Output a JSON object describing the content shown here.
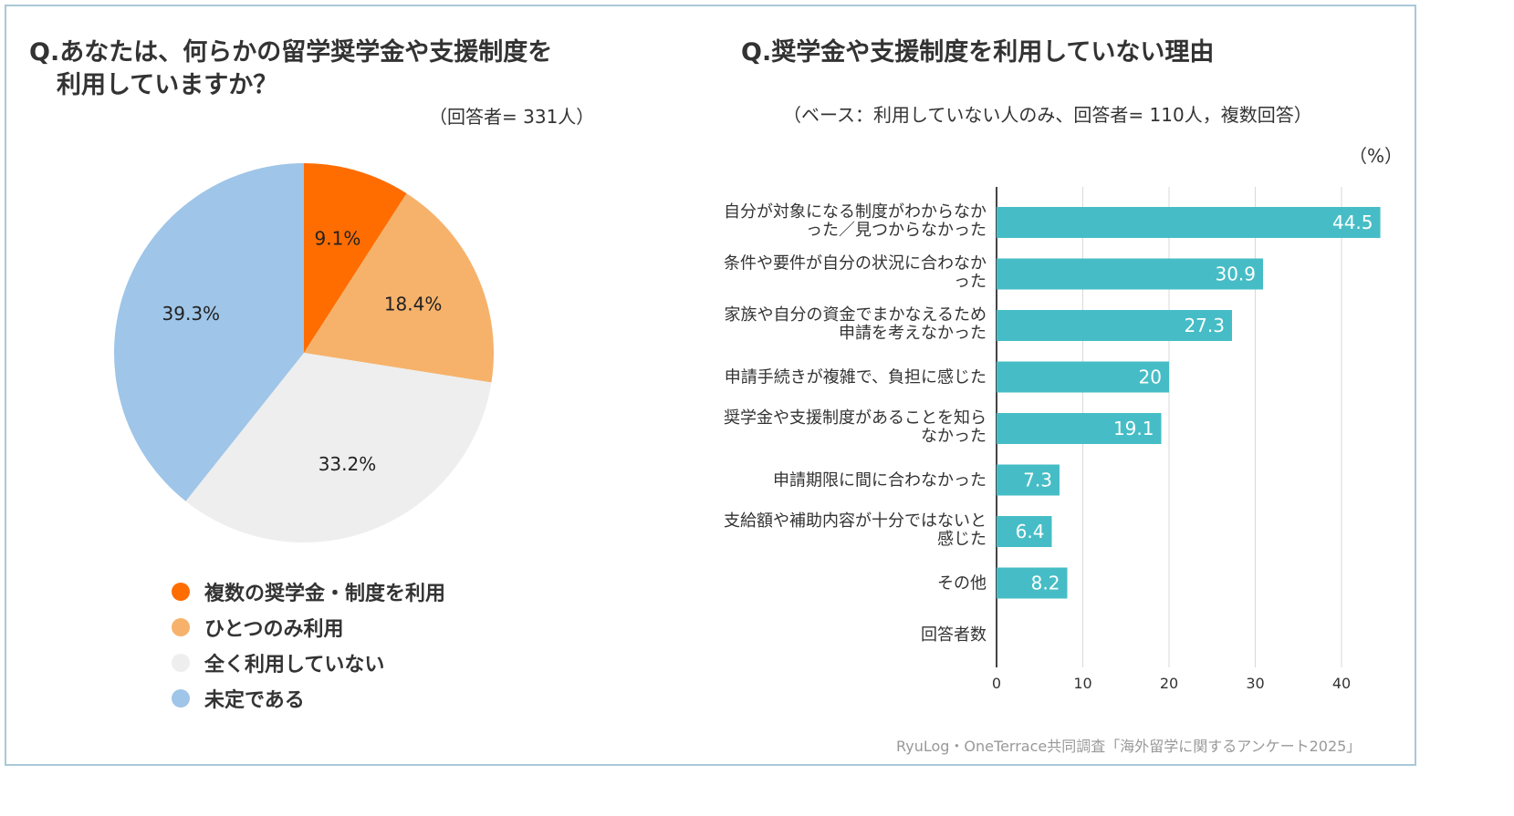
{
  "left_chart": {
    "title_line1": "Q.あなたは、何らかの留学奨学金や支援制度を",
    "title_line2": "利用していますか？",
    "respondents": "（回答者= 331人）"
  },
  "right_chart": {
    "title": "Q.奨学金や支援制度を利用していない理由",
    "base_note": "（ベース：利用していない人のみ、回答者= 110人，複数回答）",
    "unit": "（%）"
  },
  "chart_data": [
    {
      "type": "pie",
      "title": "Q.あなたは、何らかの留学奨学金や支援制度を利用していますか？",
      "labels": [
        "複数の奨学金・制度を利用",
        "ひとつのみ利用",
        "全く利用していない",
        "未定である"
      ],
      "values": [
        9.1,
        18.4,
        33.2,
        39.3
      ],
      "value_labels": [
        "9.1%",
        "18.4%",
        "33.2%",
        "39.3%"
      ],
      "colors": [
        "#ff6d01",
        "#f6b26b",
        "#eeeeee",
        "#9fc5e8"
      ]
    },
    {
      "type": "bar",
      "orientation": "horizontal",
      "title": "Q.奨学金や支援制度を利用していない理由",
      "categories": [
        [
          "自分が対象になる制度がわからなか",
          "った／見つからなかった"
        ],
        [
          "条件や要件が自分の状況に合わなか",
          "った"
        ],
        [
          "家族や自分の資金でまかなえるため",
          "申請を考えなかった"
        ],
        [
          "申請手続きが複雑で、負担に感じた"
        ],
        [
          "奨学金や支援制度があることを知ら",
          "なかった"
        ],
        [
          "申請期限に間に合わなかった"
        ],
        [
          "支給額や補助内容が十分ではないと",
          "感じた"
        ],
        [
          "その他"
        ],
        [
          "回答者数"
        ]
      ],
      "values": [
        44.5,
        30.9,
        27.3,
        20,
        19.1,
        7.3,
        6.4,
        8.2,
        null
      ],
      "value_labels": [
        "44.5",
        "30.9",
        "27.3",
        "20",
        "19.1",
        "7.3",
        "6.4",
        "8.2",
        ""
      ],
      "xlim": [
        0,
        45
      ],
      "xticks": [
        0,
        10,
        20,
        30,
        40
      ],
      "bar_color": "#46bdc6",
      "gridlines": true
    }
  ],
  "footer": "RyuLog・OneTerrace共同調査「海外留学に関するアンケート2025」"
}
